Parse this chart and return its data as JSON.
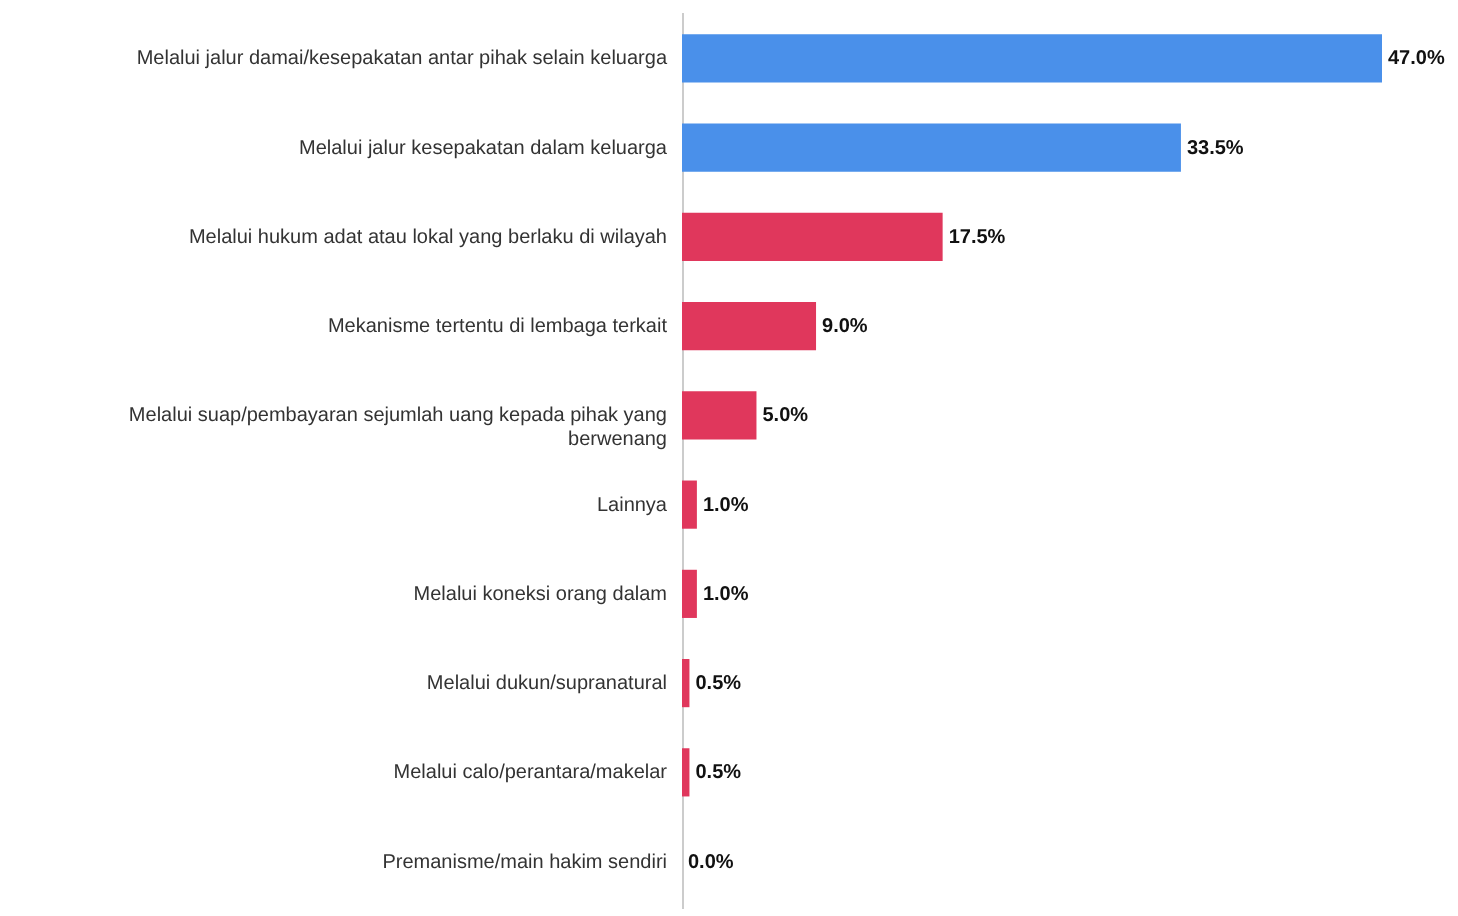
{
  "chart_data": {
    "type": "bar",
    "orientation": "horizontal",
    "value_labels": [
      "47.0%",
      "33.5%",
      "17.5%",
      "9.0%",
      "5.0%",
      "1.0%",
      "1.0%",
      "0.5%",
      "0.5%",
      "0.0%"
    ],
    "categories": [
      "Melalui jalur damai/kesepakatan antar pihak selain keluarga",
      "Melalui jalur kesepakatan dalam keluarga",
      "Melalui hukum adat atau lokal yang berlaku di wilayah",
      "Mekanisme tertentu di lembaga terkait",
      "Melalui suap/pembayaran sejumlah uang kepada pihak yang berwenang",
      "Lainnya",
      "Melalui koneksi orang dalam",
      "Melalui dukun/supranatural",
      "Melalui calo/perantara/makelar",
      "Premanisme/main hakim sendiri"
    ],
    "values": [
      47.0,
      33.5,
      17.5,
      9.0,
      5.0,
      1.0,
      1.0,
      0.5,
      0.5,
      0.0
    ],
    "colors": [
      "#4a90ea",
      "#4a90ea",
      "#e0375c",
      "#e0375c",
      "#e0375c",
      "#e0375c",
      "#e0375c",
      "#e0375c",
      "#e0375c",
      "#e0375c"
    ]
  }
}
